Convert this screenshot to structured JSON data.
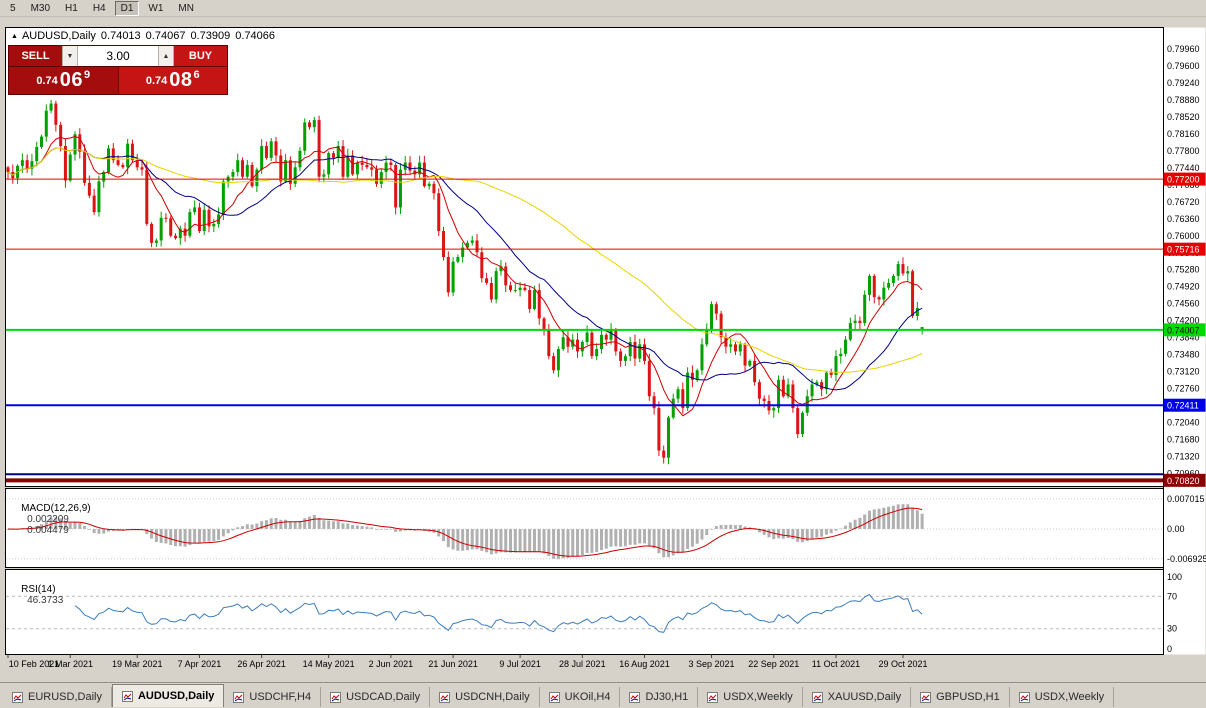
{
  "period_toolbar": {
    "items": [
      {
        "label": "5",
        "active": false
      },
      {
        "label": "M30",
        "active": false
      },
      {
        "label": "H1",
        "active": false
      },
      {
        "label": "H4",
        "active": false
      },
      {
        "label": "D1",
        "active": true
      },
      {
        "label": "W1",
        "active": false
      },
      {
        "label": "MN",
        "active": false
      }
    ]
  },
  "chart_header": {
    "collapse_icon": "▲",
    "symbol": "AUDUSD,Daily",
    "open": "0.74013",
    "high": "0.74067",
    "low": "0.73909",
    "close": "0.74066"
  },
  "quote_panel": {
    "sell_label": "SELL",
    "buy_label": "BUY",
    "volume": "3.00",
    "down_icon": "▼",
    "up_icon": "▲",
    "sell_price": {
      "prefix": "0.74",
      "big": "06",
      "sup": "9"
    },
    "buy_price": {
      "prefix": "0.74",
      "big": "08",
      "sup": "6"
    }
  },
  "indicators": {
    "macd": {
      "title": "MACD(12,26,9)",
      "value_main": "0.002209",
      "value_signal": "0.004479",
      "axis_labels": [
        "0.007015",
        "0.00",
        "-0.006925"
      ]
    },
    "rsi": {
      "title": "RSI(14)",
      "value": "46.3733",
      "axis_labels": [
        "100",
        "70",
        "30",
        "0"
      ]
    }
  },
  "bottom_tabs": {
    "items": [
      {
        "label": "EURUSD,Daily",
        "active": false
      },
      {
        "label": "AUDUSD,Daily",
        "active": true
      },
      {
        "label": "USDCHF,H4",
        "active": false
      },
      {
        "label": "USDCAD,Daily",
        "active": false
      },
      {
        "label": "USDCNH,Daily",
        "active": false
      },
      {
        "label": "UKOil,H4",
        "active": false
      },
      {
        "label": "DJ30,H1",
        "active": false
      },
      {
        "label": "USDX,Weekly",
        "active": false
      },
      {
        "label": "XAUUSD,Daily",
        "active": false
      },
      {
        "label": "GBPUSD,H1",
        "active": false
      },
      {
        "label": "USDX,Weekly",
        "active": false
      }
    ]
  },
  "chart_data": {
    "type": "candlestick",
    "symbol": "AUDUSD",
    "timeframe": "Daily",
    "current": {
      "open": 0.74013,
      "high": 0.74067,
      "low": 0.73909,
      "close": 0.74066
    },
    "price_axis": {
      "min": 0.707,
      "max": 0.804,
      "labels": [
        0.7996,
        0.796,
        0.7924,
        0.7888,
        0.7852,
        0.7816,
        0.778,
        0.7744,
        0.7708,
        0.7672,
        0.7636,
        0.76,
        0.7564,
        0.7528,
        0.7492,
        0.7456,
        0.742,
        0.7384,
        0.7348,
        0.7312,
        0.7276,
        0.724,
        0.7204,
        0.7168,
        0.7132,
        0.7096
      ]
    },
    "x_labels": [
      {
        "bar": 0,
        "text": "10 Feb 2021"
      },
      {
        "bar": 13,
        "text": "1 Mar 2021"
      },
      {
        "bar": 27,
        "text": "19 Mar 2021"
      },
      {
        "bar": 40,
        "text": "7 Apr 2021"
      },
      {
        "bar": 53,
        "text": "26 Apr 2021"
      },
      {
        "bar": 67,
        "text": "14 May 2021"
      },
      {
        "bar": 80,
        "text": "2 Jun 2021"
      },
      {
        "bar": 93,
        "text": "21 Jun 2021"
      },
      {
        "bar": 107,
        "text": "9 Jul 2021"
      },
      {
        "bar": 120,
        "text": "28 Jul 2021"
      },
      {
        "bar": 133,
        "text": "16 Aug 2021"
      },
      {
        "bar": 147,
        "text": "3 Sep 2021"
      },
      {
        "bar": 160,
        "text": "22 Sep 2021"
      },
      {
        "bar": 173,
        "text": "11 Oct 2021"
      },
      {
        "bar": 187,
        "text": "29 Oct 2021"
      }
    ],
    "first_open": 0.7745,
    "closes": [
      0.7735,
      0.7722,
      0.7748,
      0.776,
      0.7742,
      0.7758,
      0.7788,
      0.781,
      0.7865,
      0.788,
      0.7835,
      0.779,
      0.7717,
      0.7772,
      0.7815,
      0.7778,
      0.7712,
      0.7685,
      0.765,
      0.7715,
      0.7735,
      0.7785,
      0.776,
      0.775,
      0.7745,
      0.7795,
      0.776,
      0.7745,
      0.774,
      0.7625,
      0.7585,
      0.759,
      0.7638,
      0.7637,
      0.76,
      0.7595,
      0.7615,
      0.76,
      0.765,
      0.766,
      0.761,
      0.7655,
      0.762,
      0.7625,
      0.7645,
      0.7715,
      0.7725,
      0.7735,
      0.776,
      0.7725,
      0.775,
      0.7705,
      0.774,
      0.779,
      0.7765,
      0.78,
      0.777,
      0.7715,
      0.776,
      0.771,
      0.7745,
      0.778,
      0.784,
      0.783,
      0.7845,
      0.7725,
      0.773,
      0.7775,
      0.7765,
      0.779,
      0.7725,
      0.777,
      0.773,
      0.7755,
      0.775,
      0.7745,
      0.774,
      0.771,
      0.7735,
      0.7755,
      0.775,
      0.766,
      0.774,
      0.7755,
      0.7738,
      0.773,
      0.7755,
      0.7705,
      0.771,
      0.769,
      0.761,
      0.7555,
      0.748,
      0.7545,
      0.7555,
      0.7575,
      0.7585,
      0.759,
      0.7565,
      0.751,
      0.75,
      0.7465,
      0.7525,
      0.7535,
      0.7495,
      0.7485,
      0.7485,
      0.749,
      0.7485,
      0.7445,
      0.7485,
      0.7425,
      0.74,
      0.7345,
      0.7315,
      0.736,
      0.7385,
      0.7365,
      0.738,
      0.7355,
      0.7375,
      0.7395,
      0.7345,
      0.736,
      0.739,
      0.738,
      0.74,
      0.7355,
      0.7335,
      0.7345,
      0.7375,
      0.734,
      0.737,
      0.7335,
      0.726,
      0.7235,
      0.7145,
      0.713,
      0.7215,
      0.7255,
      0.7275,
      0.7235,
      0.731,
      0.7295,
      0.7315,
      0.737,
      0.74,
      0.7455,
      0.7435,
      0.7385,
      0.7365,
      0.737,
      0.7355,
      0.737,
      0.7325,
      0.7335,
      0.729,
      0.7255,
      0.725,
      0.723,
      0.7235,
      0.7295,
      0.726,
      0.7285,
      0.7235,
      0.718,
      0.7225,
      0.726,
      0.7285,
      0.729,
      0.7275,
      0.731,
      0.7305,
      0.7345,
      0.735,
      0.738,
      0.7415,
      0.742,
      0.7415,
      0.7475,
      0.7515,
      0.747,
      0.7465,
      0.749,
      0.75,
      0.7515,
      0.754,
      0.752,
      0.7525,
      0.743,
      0.7447,
      0.74066
    ],
    "candle_colors": {
      "up": "#00a000",
      "down": "#dc1414"
    },
    "moving_averages": [
      {
        "period": 8,
        "color": "#d20000"
      },
      {
        "period": 20,
        "color": "#000089"
      },
      {
        "period": 55,
        "color": "#e8d400"
      }
    ],
    "horizontal_lines": [
      {
        "price": 0.772,
        "label": "0.77200",
        "color": "#e60000",
        "width": 1,
        "text": "#ffffff"
      },
      {
        "price": 0.75716,
        "label": "0.75716",
        "color": "#e60000",
        "width": 1,
        "text": "#ffffff"
      },
      {
        "price": 0.74007,
        "label": "0.74007",
        "color": "#00d900",
        "width": 2,
        "text": "#000000"
      },
      {
        "price": 0.72411,
        "label": "0.72411",
        "color": "#0000e8",
        "width": 2,
        "text": "#ffffff"
      },
      {
        "price": 0.7095,
        "label": "",
        "color": "#000080",
        "width": 2,
        "text": "#ffffff"
      },
      {
        "price": 0.7082,
        "label": "0.70820",
        "color": "#8b0000",
        "width": 4,
        "text": "#ffffff"
      }
    ],
    "macd": {
      "fast": 12,
      "slow": 26,
      "signal_period": 9,
      "histogram_color": "#b0b0b0",
      "signal_color": "#cc0000",
      "axis_levels": [
        0.007015,
        0,
        -0.006925
      ]
    },
    "rsi": {
      "period": 14,
      "color": "#3b7dbb",
      "levels": [
        70,
        30
      ],
      "axis_levels": [
        100,
        70,
        30,
        0
      ]
    }
  }
}
